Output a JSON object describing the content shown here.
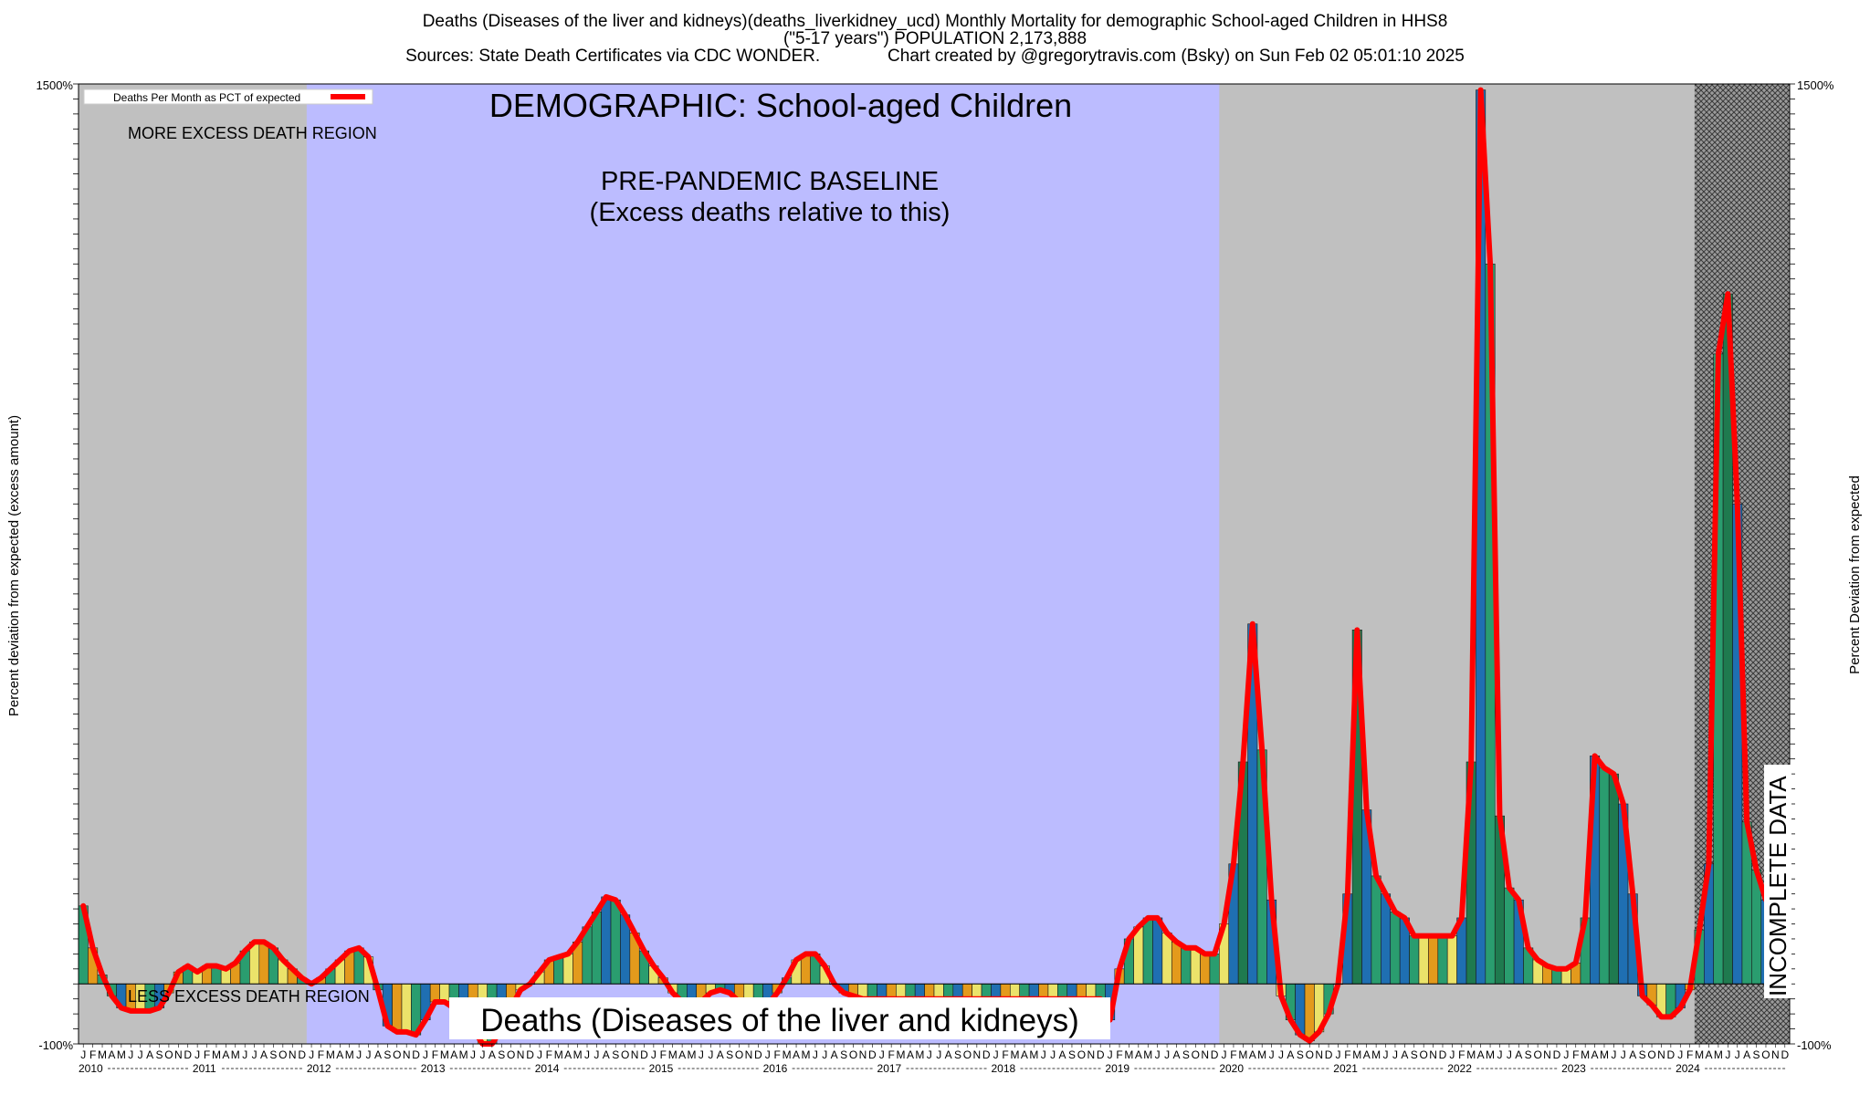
{
  "header": {
    "title_line1": "Deaths (Diseases of the liver and kidneys)(deaths_liverkidney_ucd) Monthly Mortality for demographic School-aged Children in HHS8",
    "title_line2": "(\"5-17 years\") POPULATION 2,173,888",
    "title_line3": "Sources: State Death Certificates via CDC WONDER.              Chart created by @gregorytravis.com (Bsky) on Sun Feb 02 05:01:10 2025"
  },
  "labels": {
    "y_left": "Percent deviation from expected (excess amount)",
    "y_right": "Percent Deviation from expected",
    "legend": "Deaths Per Month as PCT of expected",
    "demographic": "DEMOGRAPHIC: School-aged Children",
    "more_region": "MORE EXCESS DEATH REGION",
    "less_region": "LESS EXCESS DEATH REGION",
    "baseline_line1": "PRE-PANDEMIC BASELINE",
    "baseline_line2": "(Excess deaths relative to this)",
    "incomplete": "INCOMPLETE DATA",
    "cause": "Deaths (Diseases of the liver and kidneys)",
    "y_top_tick": "1500%",
    "y_bottom_tick": "-100%"
  },
  "colors": {
    "gray_region": "#c0c0c0",
    "baseline_region": "#bcbcff",
    "curve": "#ff0000",
    "blue": "#1f6fb2",
    "green": "#2a9d6f",
    "darkgreen": "#1f7a4f",
    "yellow": "#ebe36a",
    "orange": "#e39a1c"
  },
  "chart_data": {
    "type": "bar",
    "ylim": [
      -100,
      1500
    ],
    "month_letters": [
      "J",
      "F",
      "M",
      "A",
      "M",
      "J",
      "J",
      "A",
      "S",
      "O",
      "N",
      "D"
    ],
    "years": [
      "2010",
      "2011",
      "2012",
      "2013",
      "2014",
      "2015",
      "2016",
      "2017",
      "2018",
      "2019",
      "2020",
      "2021",
      "2022",
      "2023",
      "2024"
    ],
    "baseline_period": [
      "2012-01",
      "2019-12"
    ],
    "incomplete_period": [
      "2024-03",
      "2024-12"
    ],
    "series": [
      {
        "values": [
          130,
          60,
          15,
          -20,
          -40,
          -45,
          -45,
          -45,
          -40,
          -15,
          20,
          30,
          20,
          30,
          30,
          25,
          35,
          55,
          70,
          70,
          60,
          40,
          25,
          10,
          0,
          10,
          25,
          40,
          55,
          60,
          45,
          -10,
          -70,
          -80,
          -80,
          -85,
          -60,
          -30,
          -30,
          -40,
          -55,
          -75,
          -100,
          -100,
          -75,
          -40,
          -10,
          0,
          20,
          40,
          45,
          50,
          70,
          95,
          120,
          145,
          140,
          115,
          85,
          55,
          30,
          10,
          -15,
          -30,
          -40,
          -30,
          -15,
          -10,
          -15,
          -30,
          -40,
          -50,
          -35,
          -15,
          10,
          40,
          50,
          50,
          30,
          0,
          -15,
          -20,
          -25,
          -25,
          -25,
          -25,
          -25,
          -25,
          -25,
          -25,
          -25,
          -25,
          -25,
          -25,
          -25,
          -25,
          -25,
          -25,
          -25,
          -25,
          -25,
          -25,
          -25,
          -25,
          -25,
          -25,
          -25,
          -25,
          -60,
          25,
          75,
          95,
          110,
          110,
          85,
          70,
          60,
          60,
          50,
          50,
          100,
          200,
          370,
          600,
          390,
          140,
          -20,
          -60,
          -85,
          -95,
          -80,
          -50,
          0,
          150,
          590,
          290,
          180,
          150,
          120,
          110,
          80,
          80,
          80,
          80,
          80,
          110,
          370,
          1490,
          1200,
          280,
          160,
          140,
          60,
          40,
          30,
          25,
          25,
          35,
          110,
          380,
          360,
          350,
          300,
          150,
          -20,
          -35,
          -55,
          -55,
          -40,
          -10,
          90,
          200,
          1050,
          1150,
          800,
          270,
          190,
          140,
          130,
          120
        ]
      }
    ]
  }
}
